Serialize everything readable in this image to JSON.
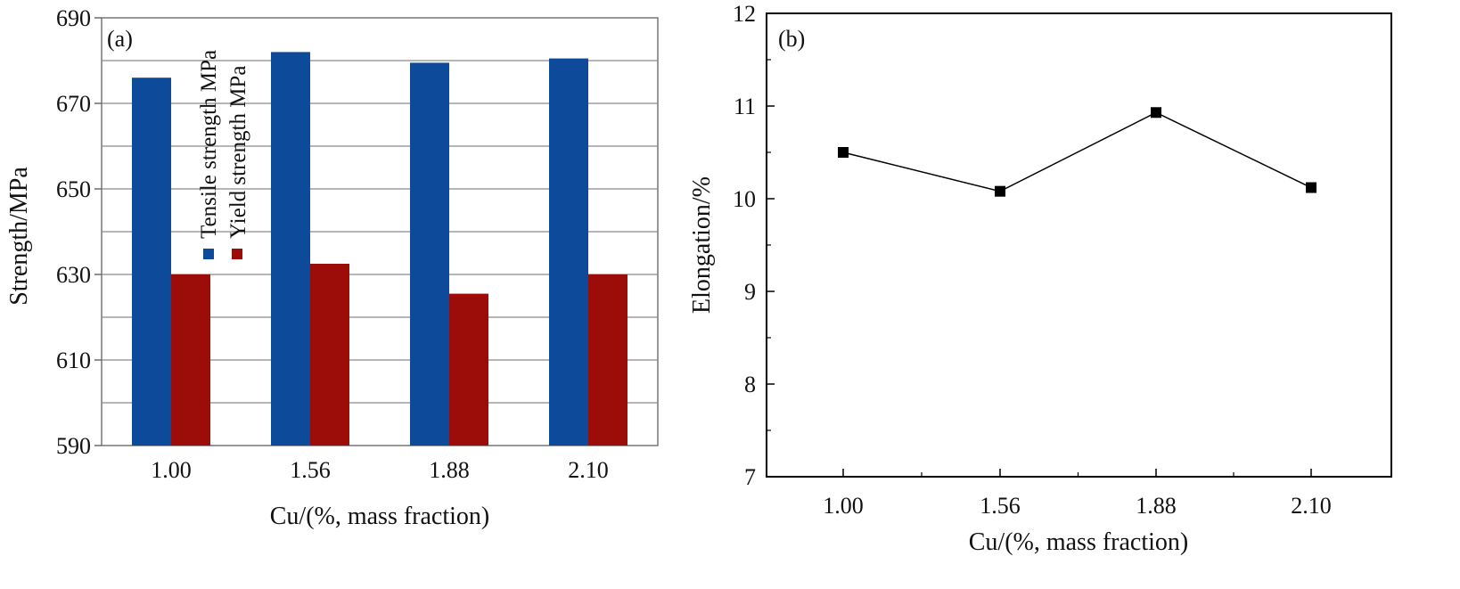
{
  "chart_data": [
    {
      "panel_label": "(a)",
      "type": "bar",
      "categories": [
        "1.00",
        "1.56",
        "1.88",
        "2.10"
      ],
      "series": [
        {
          "name": "Tensile strength MPa",
          "values": [
            676,
            682,
            679.5,
            680.5
          ],
          "color": "#0d4a9a"
        },
        {
          "name": "Yield strength MPa",
          "values": [
            630,
            632.5,
            625.5,
            630
          ],
          "color": "#9c0d0a"
        }
      ],
      "xlabel": "Cu/(%, mass fraction)",
      "ylabel": "Strength/MPa",
      "ylim": [
        590,
        690
      ],
      "yticks": [
        590,
        610,
        630,
        650,
        670,
        690
      ],
      "grid": true,
      "legend": "top-center, rotated vertical"
    },
    {
      "panel_label": "(b)",
      "type": "line",
      "categories": [
        "1.00",
        "1.56",
        "1.88",
        "2.10"
      ],
      "series": [
        {
          "values": [
            10.5,
            10.08,
            10.93,
            10.12
          ],
          "color": "#000000",
          "marker": "square"
        }
      ],
      "xlabel": "Cu/(%, mass fraction)",
      "ylabel": "Elongation/%",
      "ylim": [
        7,
        12
      ],
      "yticks": [
        "7",
        "8",
        "9",
        "10",
        "11",
        "12"
      ],
      "grid": false
    }
  ]
}
